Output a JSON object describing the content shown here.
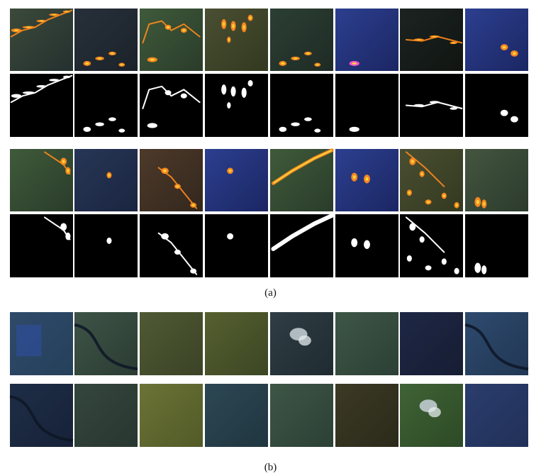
{
  "captions": {
    "a": "(a)",
    "b": "(b)"
  },
  "panel_a": {
    "group_1": {
      "images": [
        {
          "kind": "fire",
          "tone": "mixed",
          "pattern": "front-top"
        },
        {
          "kind": "fire",
          "tone": "dark",
          "pattern": "spots-bottom"
        },
        {
          "kind": "fire",
          "tone": "green",
          "pattern": "ridge"
        },
        {
          "kind": "fire",
          "tone": "olive",
          "pattern": "drops"
        },
        {
          "kind": "fire",
          "tone": "darkgreen",
          "pattern": "spots-bottom"
        },
        {
          "kind": "fire",
          "tone": "blue",
          "pattern": "pink-spot"
        },
        {
          "kind": "fire",
          "tone": "black",
          "pattern": "band-mid"
        },
        {
          "kind": "fire",
          "tone": "blue",
          "pattern": "small-right"
        }
      ]
    },
    "group_2": {
      "images": [
        {
          "kind": "fire",
          "tone": "green",
          "pattern": "edge-right"
        },
        {
          "kind": "fire",
          "tone": "darkblue",
          "pattern": "tiny-center"
        },
        {
          "kind": "fire",
          "tone": "brown",
          "pattern": "diagonal"
        },
        {
          "kind": "fire",
          "tone": "blue",
          "pattern": "crescent"
        },
        {
          "kind": "fire",
          "tone": "green",
          "pattern": "flare"
        },
        {
          "kind": "fire",
          "tone": "blue",
          "pattern": "double-hook"
        },
        {
          "kind": "fire",
          "tone": "olive",
          "pattern": "scatter"
        },
        {
          "kind": "fire",
          "tone": "cloudy",
          "pattern": "bottom-right"
        }
      ]
    }
  },
  "panel_b": {
    "rows": [
      [
        {
          "kind": "plain",
          "tone": "blue-patch"
        },
        {
          "kind": "plain",
          "tone": "green-river"
        },
        {
          "kind": "plain",
          "tone": "olive-field"
        },
        {
          "kind": "plain",
          "tone": "olive-field2"
        },
        {
          "kind": "plain",
          "tone": "cloudy-dark"
        },
        {
          "kind": "plain",
          "tone": "green-stream"
        },
        {
          "kind": "plain",
          "tone": "navy"
        },
        {
          "kind": "plain",
          "tone": "blue-meander"
        }
      ],
      [
        {
          "kind": "plain",
          "tone": "dark-meander"
        },
        {
          "kind": "plain",
          "tone": "green-grid"
        },
        {
          "kind": "plain",
          "tone": "olive-bright"
        },
        {
          "kind": "plain",
          "tone": "dark-teal"
        },
        {
          "kind": "plain",
          "tone": "green-stream"
        },
        {
          "kind": "plain",
          "tone": "brownish"
        },
        {
          "kind": "plain",
          "tone": "cloud-green"
        },
        {
          "kind": "plain",
          "tone": "navy-light"
        }
      ]
    ]
  }
}
